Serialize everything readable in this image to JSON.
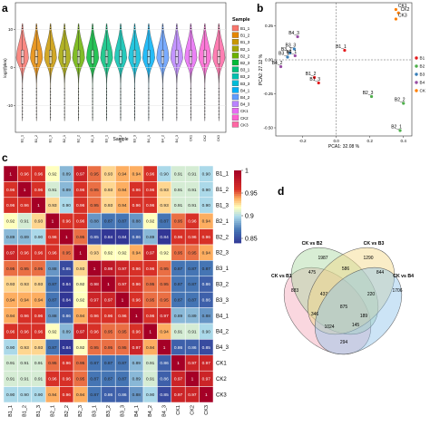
{
  "panels": {
    "a": "a",
    "b": "b",
    "c": "c",
    "d": "d"
  },
  "chart_data": [
    {
      "type": "violin",
      "panel": "a",
      "xlabel": "Sample",
      "ylabel": "log2(fpkm)",
      "yticks": [
        -10,
        0,
        10
      ],
      "ylim": [
        -17,
        17
      ],
      "categories": [
        "B1_1",
        "B1_2",
        "B1_3",
        "B2_1",
        "B2_2",
        "B2_3",
        "B3_1",
        "B3_2",
        "B3_3",
        "B4_1",
        "B4_2",
        "B4_3",
        "CK1",
        "CK2",
        "CK3"
      ],
      "medians": [
        2.8,
        2.8,
        2.8,
        2.8,
        2.8,
        2.8,
        2.8,
        2.8,
        2.8,
        2.8,
        2.8,
        2.8,
        2.8,
        2.8,
        2.8
      ],
      "q1": [
        1.0,
        1.0,
        1.0,
        1.0,
        1.0,
        1.0,
        1.0,
        1.0,
        1.0,
        1.0,
        1.0,
        1.0,
        1.0,
        1.0,
        1.0
      ],
      "q3": [
        4.6,
        4.6,
        4.6,
        4.6,
        4.6,
        4.6,
        4.6,
        4.6,
        4.6,
        4.6,
        4.6,
        4.6,
        4.6,
        4.6,
        4.6
      ],
      "legend_title": "Sample",
      "legend": [
        "B1_1",
        "B1_2",
        "B1_3",
        "B2_1",
        "B2_2",
        "B2_3",
        "B3_1",
        "B3_2",
        "B3_3",
        "B4_1",
        "B4_2",
        "B4_3",
        "CK1",
        "CK2",
        "CK3"
      ],
      "colors": [
        "#f8766d",
        "#e58700",
        "#c99800",
        "#a3a500",
        "#6bb100",
        "#00ba38",
        "#00bf7d",
        "#00c0af",
        "#00bcd8",
        "#00b0f6",
        "#619cff",
        "#b983ff",
        "#e76bf3",
        "#fd61d1",
        "#ff67a4"
      ]
    },
    {
      "type": "scatter",
      "panel": "b",
      "xlabel": "PCA1: 32.08 %",
      "ylabel": "PCA2: 27.12 %",
      "xticks": [
        -0.2,
        0.0,
        0.2,
        0.4
      ],
      "yticks": [
        -0.5,
        -0.25,
        0.0,
        0.25
      ],
      "xlim": [
        -0.36,
        0.45
      ],
      "ylim": [
        -0.56,
        0.42
      ],
      "points": [
        {
          "label": "CK1",
          "x": 0.355,
          "y": 0.37,
          "group": "CK"
        },
        {
          "label": "CK2",
          "x": 0.37,
          "y": 0.345,
          "group": "CK"
        },
        {
          "label": "CK3",
          "x": 0.355,
          "y": 0.3,
          "group": "CK"
        },
        {
          "label": "B4_3",
          "x": -0.23,
          "y": 0.17,
          "group": "B4"
        },
        {
          "label": "B3_3",
          "x": -0.25,
          "y": 0.08,
          "group": "B3"
        },
        {
          "label": "B3_2",
          "x": -0.275,
          "y": 0.05,
          "group": "B3"
        },
        {
          "label": "B3_1",
          "x": -0.29,
          "y": 0.02,
          "group": "B3"
        },
        {
          "label": "B4_1",
          "x": -0.245,
          "y": 0.03,
          "group": "B4"
        },
        {
          "label": "B4_2",
          "x": -0.33,
          "y": -0.05,
          "group": "B4"
        },
        {
          "label": "B1_1",
          "x": 0.05,
          "y": 0.07,
          "group": "B1"
        },
        {
          "label": "B1_2",
          "x": -0.13,
          "y": -0.13,
          "group": "B1"
        },
        {
          "label": "B1_3",
          "x": -0.105,
          "y": -0.17,
          "group": "B1"
        },
        {
          "label": "B2_3",
          "x": 0.21,
          "y": -0.27,
          "group": "B2"
        },
        {
          "label": "B2_2",
          "x": 0.4,
          "y": -0.32,
          "group": "B2"
        },
        {
          "label": "B2_1",
          "x": 0.38,
          "y": -0.52,
          "group": "B2"
        }
      ],
      "legend": [
        "B1",
        "B2",
        "B3",
        "B4",
        "CK"
      ],
      "group_colors": {
        "B1": "#e41a1c",
        "B2": "#4daf4a",
        "B3": "#377eb8",
        "B4": "#984ea3",
        "CK": "#ff7f00"
      },
      "group_colors_order": [
        "#e41a1c",
        "#4daf4a",
        "#377eb8",
        "#984ea3",
        "#ff7f00"
      ],
      "reference_lines": [
        0,
        0
      ]
    },
    {
      "type": "heatmap",
      "panel": "c",
      "labels": [
        "B1_1",
        "B1_2",
        "B1_3",
        "B2_1",
        "B2_2",
        "B2_3",
        "B3_1",
        "B3_2",
        "B3_3",
        "B4_1",
        "B4_2",
        "B4_3",
        "CK1",
        "CK2",
        "CK3"
      ],
      "values": [
        [
          1,
          0.96,
          0.96,
          0.92,
          0.89,
          0.97,
          0.95,
          0.93,
          0.94,
          0.94,
          0.96,
          0.9,
          0.91,
          0.91,
          0.9
        ],
        [
          0.96,
          1,
          0.96,
          0.91,
          0.89,
          0.96,
          0.95,
          0.93,
          0.94,
          0.96,
          0.96,
          0.93,
          0.91,
          0.91,
          0.9
        ],
        [
          0.96,
          0.96,
          1,
          0.93,
          0.9,
          0.96,
          0.95,
          0.93,
          0.94,
          0.96,
          0.96,
          0.93,
          0.91,
          0.91,
          0.9
        ],
        [
          0.92,
          0.91,
          0.93,
          1,
          0.96,
          0.96,
          0.88,
          0.87,
          0.87,
          0.88,
          0.92,
          0.87,
          0.95,
          0.96,
          0.94
        ],
        [
          0.89,
          0.89,
          0.9,
          0.96,
          1,
          0.95,
          0.85,
          0.84,
          0.84,
          0.86,
          0.89,
          0.84,
          0.96,
          0.96,
          0.96
        ],
        [
          0.97,
          0.96,
          0.96,
          0.96,
          0.95,
          1,
          0.93,
          0.92,
          0.92,
          0.94,
          0.97,
          0.92,
          0.95,
          0.95,
          0.94
        ],
        [
          0.95,
          0.95,
          0.95,
          0.88,
          0.85,
          0.93,
          1,
          0.98,
          0.97,
          0.96,
          0.96,
          0.95,
          0.87,
          0.87,
          0.87
        ],
        [
          0.93,
          0.93,
          0.93,
          0.87,
          0.84,
          0.92,
          0.98,
          1,
          0.97,
          0.96,
          0.95,
          0.95,
          0.87,
          0.87,
          0.86
        ],
        [
          0.94,
          0.94,
          0.94,
          0.87,
          0.84,
          0.92,
          0.97,
          0.97,
          1,
          0.96,
          0.95,
          0.95,
          0.87,
          0.87,
          0.86
        ],
        [
          0.94,
          0.96,
          0.96,
          0.88,
          0.86,
          0.94,
          0.96,
          0.96,
          0.96,
          1,
          0.96,
          0.97,
          0.89,
          0.89,
          0.88
        ],
        [
          0.96,
          0.96,
          0.96,
          0.92,
          0.89,
          0.97,
          0.96,
          0.95,
          0.95,
          0.96,
          1,
          0.94,
          0.91,
          0.91,
          0.9
        ],
        [
          0.9,
          0.93,
          0.93,
          0.87,
          0.84,
          0.92,
          0.95,
          0.95,
          0.95,
          0.97,
          0.94,
          1,
          0.86,
          0.86,
          0.85
        ],
        [
          0.91,
          0.91,
          0.91,
          0.95,
          0.96,
          0.95,
          0.87,
          0.87,
          0.87,
          0.89,
          0.91,
          0.86,
          1,
          0.97,
          0.97
        ],
        [
          0.91,
          0.91,
          0.91,
          0.96,
          0.96,
          0.95,
          0.87,
          0.87,
          0.87,
          0.89,
          0.91,
          0.86,
          0.97,
          1,
          0.97
        ],
        [
          0.9,
          0.9,
          0.9,
          0.94,
          0.96,
          0.94,
          0.87,
          0.86,
          0.86,
          0.88,
          0.9,
          0.85,
          0.97,
          0.97,
          1
        ]
      ],
      "colorbar_ticks": [
        1,
        0.95,
        0.9,
        0.85
      ],
      "color_range": [
        0.84,
        1
      ]
    },
    {
      "type": "venn",
      "panel": "d",
      "sets": [
        "CK vs B1",
        "CK vs B2",
        "CK vs B3",
        "CK vs B4"
      ],
      "set_colors": [
        "#f4a6b8",
        "#a8d8a0",
        "#f5d782",
        "#8fc4ea"
      ],
      "regions": {
        "B1_only": 883,
        "B2_only": 1987,
        "B3_only": 1290,
        "B4_only": 1706,
        "B1_B2": 475,
        "B2_B3": 586,
        "B3_B4": 844,
        "B1_B4": 294,
        "B1_B3": 1024,
        "B2_B4": 220,
        "B1_B2_B3": 437,
        "B2_B3_B4": 189,
        "B1_B2_B4": 346,
        "B1_B3_B4": 145,
        "all": 875
      }
    }
  ]
}
